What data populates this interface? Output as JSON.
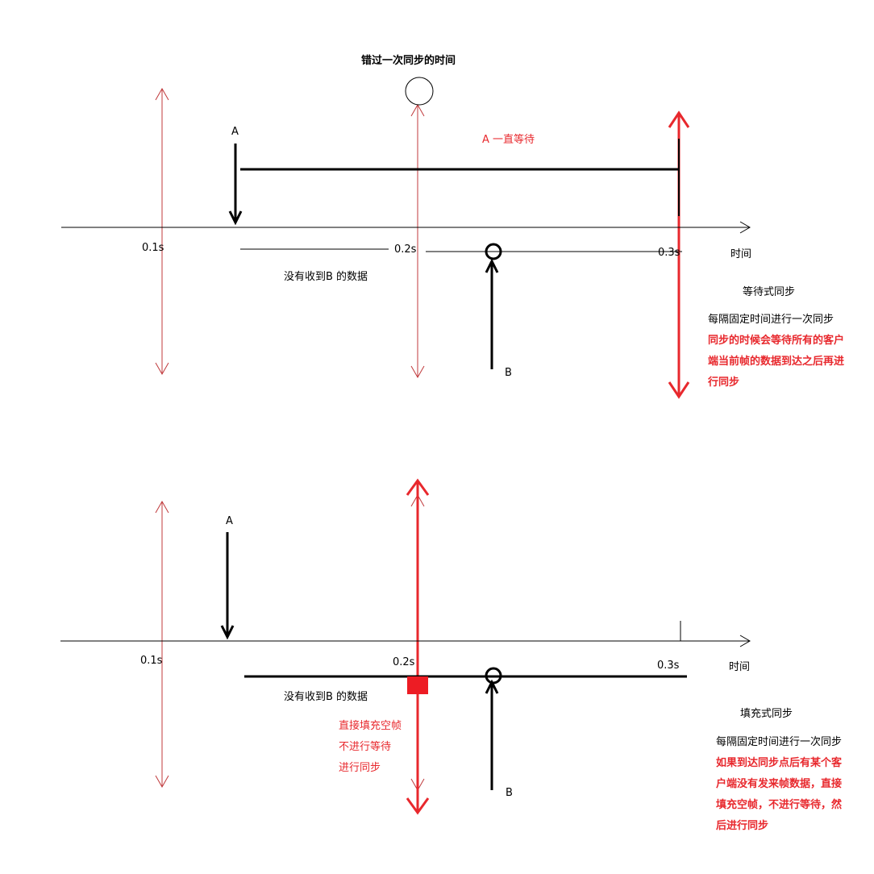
{
  "colors": {
    "black": "#000000",
    "red": "#e8282d",
    "thin_red": "#c0393b",
    "fill_red": "#ed1c24"
  },
  "top": {
    "title": "错过一次同步的时间",
    "a_label": "A",
    "b_label": "B",
    "wait_label": "A 一直等待",
    "tick_01": "0.1s",
    "tick_02": "0.2s",
    "tick_03": "0.3s",
    "axis_label": "时间",
    "no_data": "没有收到B 的数据",
    "heading": "等待式同步",
    "desc_line1": "每隔固定时间进行一次同步",
    "desc_red": [
      "同步的时候会等待所有的客户",
      "端当前帧的数据到达之后再进",
      "行同步"
    ]
  },
  "bottom": {
    "a_label": "A",
    "b_label": "B",
    "tick_01": "0.1s",
    "tick_02": "0.2s",
    "tick_03": "0.3s",
    "axis_label": "时间",
    "no_data": "没有收到B 的数据",
    "fill_note": [
      "直接填充空帧",
      "不进行等待",
      "进行同步"
    ],
    "heading": "填充式同步",
    "desc_line1": "每隔固定时间进行一次同步",
    "desc_red": [
      "如果到达同步点后有某个客",
      "户端没有发来帧数据，直接",
      "填充空帧，不进行等待，然",
      "后进行同步"
    ]
  }
}
